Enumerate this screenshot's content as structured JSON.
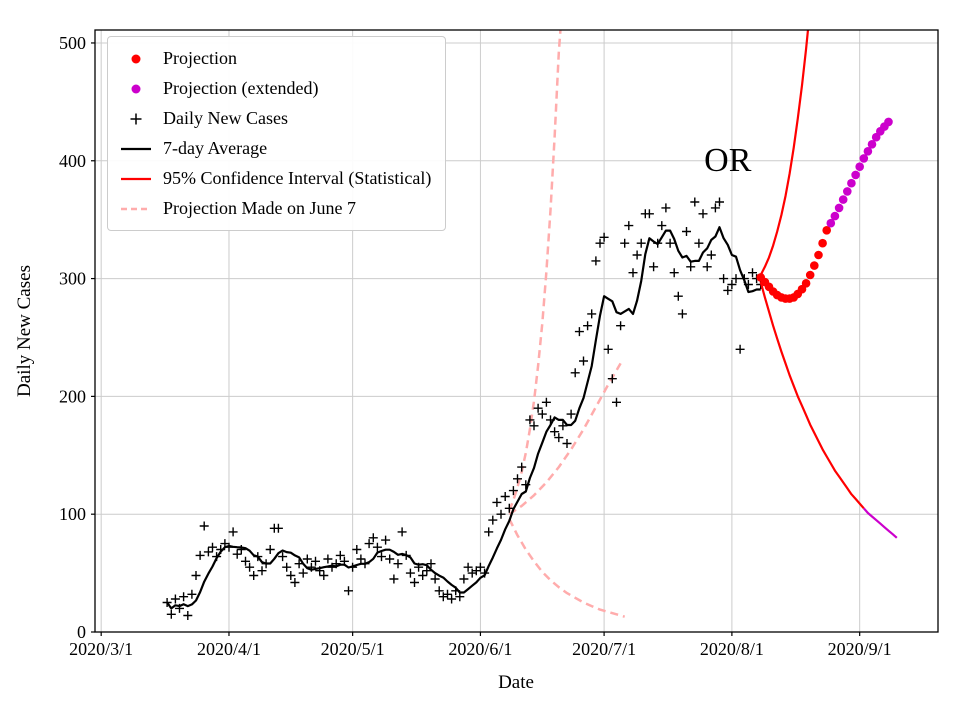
{
  "chart_data": {
    "type": "line",
    "title": "",
    "xlabel": "Date",
    "ylabel": "Daily New Cases",
    "grid": true,
    "x_axis": {
      "unit": "days since 2020-03-01",
      "lim": [
        -1.5,
        203
      ],
      "ticks": [
        {
          "day": 0,
          "label": "2020/3/1"
        },
        {
          "day": 31,
          "label": "2020/4/1"
        },
        {
          "day": 61,
          "label": "2020/5/1"
        },
        {
          "day": 92,
          "label": "2020/6/1"
        },
        {
          "day": 122,
          "label": "2020/7/1"
        },
        {
          "day": 153,
          "label": "2020/8/1"
        },
        {
          "day": 184,
          "label": "2020/9/1"
        }
      ]
    },
    "y_axis": {
      "lim": [
        0,
        511
      ],
      "ticks": [
        0,
        100,
        200,
        300,
        400,
        500
      ]
    },
    "annotation": {
      "text": "OR",
      "day": 152,
      "value": 398
    },
    "legend": {
      "position": "upper left",
      "entries": [
        {
          "style": "scatter_dot",
          "color": "#ff0000",
          "label": "Projection"
        },
        {
          "style": "scatter_dot",
          "color": "#cc00cc",
          "label": "Projection (extended)"
        },
        {
          "style": "scatter_plus",
          "color": "#000000",
          "label": "Daily New Cases"
        },
        {
          "style": "line",
          "color": "#000000",
          "label": "7-day Average"
        },
        {
          "style": "line",
          "color": "#ff0000",
          "label": "95% Confidence Interval (Statistical)"
        },
        {
          "style": "line_dashed",
          "color": "#ffacac",
          "label": "Projection Made on June 7"
        }
      ]
    },
    "series": [
      {
        "id": "june7_upper",
        "label": "Projection Made on June 7 (upper bound)",
        "style": "line_dashed",
        "color": "#ffacac",
        "width": 2.5,
        "points": [
          [
            99,
            103
          ],
          [
            100,
            112
          ],
          [
            101,
            123
          ],
          [
            102,
            136
          ],
          [
            103,
            152
          ],
          [
            104,
            172
          ],
          [
            105,
            196
          ],
          [
            106,
            226
          ],
          [
            107,
            262
          ],
          [
            108,
            306
          ],
          [
            109,
            358
          ],
          [
            110,
            420
          ],
          [
            111,
            492
          ],
          [
            112,
            540
          ]
        ]
      },
      {
        "id": "june7_center",
        "label": "Projection Made on June 7 (central)",
        "style": "line_dashed",
        "color": "#ffacac",
        "width": 2.5,
        "points": [
          [
            99,
            100
          ],
          [
            102,
            107
          ],
          [
            105,
            116
          ],
          [
            108,
            127
          ],
          [
            111,
            140
          ],
          [
            114,
            155
          ],
          [
            117,
            172
          ],
          [
            120,
            191
          ],
          [
            123,
            210
          ],
          [
            126,
            228
          ]
        ]
      },
      {
        "id": "june7_lower",
        "label": "Projection Made on June 7 (lower bound)",
        "style": "line_dashed",
        "color": "#ffacac",
        "width": 2.5,
        "points": [
          [
            99,
            96
          ],
          [
            101,
            82
          ],
          [
            103,
            70
          ],
          [
            105,
            60
          ],
          [
            107,
            51
          ],
          [
            109,
            44
          ],
          [
            111,
            38
          ],
          [
            113,
            33
          ],
          [
            115,
            29
          ],
          [
            117,
            25
          ],
          [
            119,
            22
          ],
          [
            121,
            19
          ],
          [
            123,
            17
          ],
          [
            125,
            15
          ],
          [
            127,
            13
          ]
        ]
      },
      {
        "id": "daily_new_cases",
        "label": "Daily New Cases",
        "style": "scatter_plus",
        "color": "#000000",
        "size": 4.5,
        "points": [
          [
            16,
            25
          ],
          [
            17,
            15
          ],
          [
            18,
            28
          ],
          [
            19,
            20
          ],
          [
            20,
            30
          ],
          [
            21,
            14
          ],
          [
            22,
            32
          ],
          [
            23,
            48
          ],
          [
            24,
            65
          ],
          [
            25,
            90
          ],
          [
            26,
            68
          ],
          [
            27,
            72
          ],
          [
            28,
            64
          ],
          [
            29,
            70
          ],
          [
            30,
            75
          ],
          [
            31,
            72
          ],
          [
            32,
            85
          ],
          [
            33,
            66
          ],
          [
            34,
            70
          ],
          [
            35,
            60
          ],
          [
            36,
            55
          ],
          [
            37,
            48
          ],
          [
            38,
            64
          ],
          [
            39,
            52
          ],
          [
            40,
            58
          ],
          [
            41,
            70
          ],
          [
            42,
            88
          ],
          [
            43,
            88
          ],
          [
            44,
            64
          ],
          [
            45,
            55
          ],
          [
            46,
            48
          ],
          [
            47,
            42
          ],
          [
            48,
            58
          ],
          [
            49,
            50
          ],
          [
            50,
            62
          ],
          [
            51,
            55
          ],
          [
            52,
            60
          ],
          [
            53,
            52
          ],
          [
            54,
            48
          ],
          [
            55,
            62
          ],
          [
            56,
            55
          ],
          [
            57,
            58
          ],
          [
            58,
            65
          ],
          [
            59,
            60
          ],
          [
            60,
            35
          ],
          [
            61,
            55
          ],
          [
            62,
            70
          ],
          [
            63,
            62
          ],
          [
            64,
            58
          ],
          [
            65,
            75
          ],
          [
            66,
            80
          ],
          [
            67,
            72
          ],
          [
            68,
            64
          ],
          [
            69,
            78
          ],
          [
            70,
            62
          ],
          [
            71,
            45
          ],
          [
            72,
            58
          ],
          [
            73,
            85
          ],
          [
            74,
            65
          ],
          [
            75,
            50
          ],
          [
            76,
            42
          ],
          [
            77,
            55
          ],
          [
            78,
            48
          ],
          [
            79,
            52
          ],
          [
            80,
            58
          ],
          [
            81,
            45
          ],
          [
            82,
            35
          ],
          [
            83,
            30
          ],
          [
            84,
            32
          ],
          [
            85,
            28
          ],
          [
            86,
            35
          ],
          [
            87,
            30
          ],
          [
            88,
            45
          ],
          [
            89,
            55
          ],
          [
            90,
            50
          ],
          [
            91,
            52
          ],
          [
            92,
            55
          ],
          [
            93,
            50
          ],
          [
            94,
            85
          ],
          [
            95,
            95
          ],
          [
            96,
            110
          ],
          [
            97,
            100
          ],
          [
            98,
            115
          ],
          [
            99,
            105
          ],
          [
            100,
            120
          ],
          [
            101,
            130
          ],
          [
            102,
            140
          ],
          [
            103,
            125
          ],
          [
            104,
            180
          ],
          [
            105,
            175
          ],
          [
            106,
            190
          ],
          [
            107,
            185
          ],
          [
            108,
            195
          ],
          [
            109,
            180
          ],
          [
            110,
            170
          ],
          [
            111,
            165
          ],
          [
            112,
            175
          ],
          [
            113,
            160
          ],
          [
            114,
            185
          ],
          [
            115,
            220
          ],
          [
            116,
            255
          ],
          [
            117,
            230
          ],
          [
            118,
            260
          ],
          [
            119,
            270
          ],
          [
            120,
            315
          ],
          [
            121,
            330
          ],
          [
            122,
            335
          ],
          [
            123,
            240
          ],
          [
            124,
            215
          ],
          [
            125,
            195
          ],
          [
            126,
            260
          ],
          [
            127,
            330
          ],
          [
            128,
            345
          ],
          [
            129,
            305
          ],
          [
            130,
            320
          ],
          [
            131,
            330
          ],
          [
            132,
            355
          ],
          [
            133,
            355
          ],
          [
            134,
            310
          ],
          [
            135,
            330
          ],
          [
            136,
            345
          ],
          [
            137,
            360
          ],
          [
            138,
            330
          ],
          [
            139,
            305
          ],
          [
            140,
            285
          ],
          [
            141,
            270
          ],
          [
            142,
            340
          ],
          [
            143,
            310
          ],
          [
            144,
            365
          ],
          [
            145,
            330
          ],
          [
            146,
            355
          ],
          [
            147,
            310
          ],
          [
            148,
            320
          ],
          [
            149,
            360
          ],
          [
            150,
            365
          ],
          [
            151,
            300
          ],
          [
            152,
            290
          ],
          [
            153,
            295
          ],
          [
            154,
            300
          ],
          [
            155,
            240
          ],
          [
            156,
            300
          ],
          [
            157,
            295
          ],
          [
            158,
            305
          ],
          [
            159,
            300
          ],
          [
            160,
            295
          ]
        ]
      },
      {
        "id": "seven_day_average",
        "label": "7-day Average",
        "style": "line",
        "color": "#000000",
        "width": 2.2,
        "derive": {
          "method": "moving_average",
          "source": "daily_new_cases",
          "window": 7
        }
      },
      {
        "id": "ci_upper",
        "label": "95% Confidence Interval (upper)",
        "style": "line",
        "color": "#ff0000",
        "width": 2.2,
        "points": [
          [
            160,
            303
          ],
          [
            161,
            310
          ],
          [
            162,
            318
          ],
          [
            163,
            328
          ],
          [
            164,
            340
          ],
          [
            165,
            354
          ],
          [
            166,
            370
          ],
          [
            167,
            389
          ],
          [
            168,
            411
          ],
          [
            169,
            436
          ],
          [
            170,
            464
          ],
          [
            171,
            495
          ],
          [
            172,
            530
          ]
        ]
      },
      {
        "id": "ci_lower",
        "label": "95% Confidence Interval (lower)",
        "style": "line",
        "color": "#ff0000",
        "width": 2.2,
        "points": [
          [
            160,
            297
          ],
          [
            161,
            284
          ],
          [
            162,
            272
          ],
          [
            163,
            260
          ],
          [
            164,
            249
          ],
          [
            165,
            238
          ],
          [
            166,
            228
          ],
          [
            167,
            218
          ],
          [
            168,
            209
          ],
          [
            169,
            200
          ],
          [
            170,
            192
          ],
          [
            171,
            184
          ],
          [
            172,
            176
          ],
          [
            173,
            169
          ],
          [
            174,
            162
          ],
          [
            175,
            155
          ],
          [
            176,
            149
          ],
          [
            177,
            143
          ],
          [
            178,
            137
          ],
          [
            179,
            132
          ],
          [
            180,
            127
          ],
          [
            181,
            122
          ],
          [
            182,
            117
          ],
          [
            183,
            113
          ],
          [
            184,
            109
          ],
          [
            185,
            105
          ]
        ]
      },
      {
        "id": "ci_lower_extended",
        "label": "95% Confidence Interval (lower, extended)",
        "style": "line",
        "color": "#cc00cc",
        "width": 2.2,
        "points": [
          [
            185,
            105
          ],
          [
            186,
            101
          ],
          [
            187,
            98
          ],
          [
            188,
            95
          ],
          [
            189,
            92
          ],
          [
            190,
            89
          ],
          [
            191,
            86
          ],
          [
            192,
            83
          ],
          [
            193,
            80
          ]
        ]
      },
      {
        "id": "projection",
        "label": "Projection",
        "style": "scatter_dot",
        "color": "#ff0000",
        "size": 4.3,
        "points": [
          [
            160,
            301
          ],
          [
            161,
            297
          ],
          [
            162,
            293
          ],
          [
            163,
            289
          ],
          [
            164,
            286
          ],
          [
            165,
            284
          ],
          [
            166,
            283
          ],
          [
            167,
            283
          ],
          [
            168,
            284
          ],
          [
            169,
            287
          ],
          [
            170,
            291
          ],
          [
            171,
            296
          ],
          [
            172,
            303
          ],
          [
            173,
            311
          ],
          [
            174,
            320
          ],
          [
            175,
            330
          ],
          [
            176,
            341
          ]
        ]
      },
      {
        "id": "projection_extended",
        "label": "Projection (extended)",
        "style": "scatter_dot",
        "color": "#cc00cc",
        "size": 4.3,
        "points": [
          [
            177,
            347
          ],
          [
            178,
            353
          ],
          [
            179,
            360
          ],
          [
            180,
            367
          ],
          [
            181,
            374
          ],
          [
            182,
            381
          ],
          [
            183,
            388
          ],
          [
            184,
            395
          ],
          [
            185,
            402
          ],
          [
            186,
            408
          ],
          [
            187,
            414
          ],
          [
            188,
            420
          ],
          [
            189,
            425
          ],
          [
            190,
            429
          ],
          [
            191,
            433
          ]
        ]
      }
    ]
  }
}
